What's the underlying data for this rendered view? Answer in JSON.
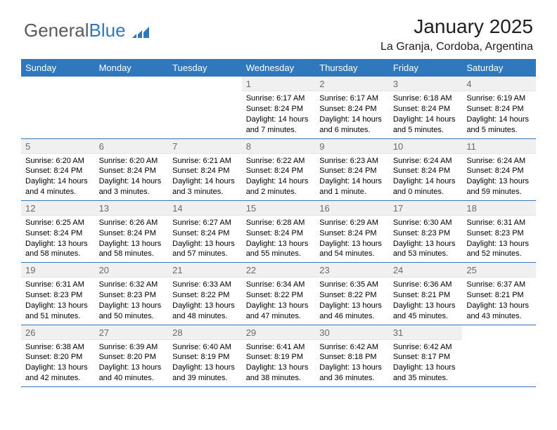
{
  "brand": {
    "part1": "General",
    "part2": "Blue"
  },
  "title": "January 2025",
  "subtitle": "La Granja, Cordoba, Argentina",
  "colors": {
    "header_bg": "#2f78bd",
    "header_fg": "#ffffff",
    "daynum_bg": "#f0f0f0",
    "daynum_fg": "#6a6a6a",
    "row_border": "#2f78bd"
  },
  "weekdays": [
    "Sunday",
    "Monday",
    "Tuesday",
    "Wednesday",
    "Thursday",
    "Friday",
    "Saturday"
  ],
  "weeks": [
    [
      null,
      null,
      null,
      {
        "n": "1",
        "sunrise": "6:17 AM",
        "sunset": "8:24 PM",
        "daylight": "14 hours and 7 minutes."
      },
      {
        "n": "2",
        "sunrise": "6:17 AM",
        "sunset": "8:24 PM",
        "daylight": "14 hours and 6 minutes."
      },
      {
        "n": "3",
        "sunrise": "6:18 AM",
        "sunset": "8:24 PM",
        "daylight": "14 hours and 5 minutes."
      },
      {
        "n": "4",
        "sunrise": "6:19 AM",
        "sunset": "8:24 PM",
        "daylight": "14 hours and 5 minutes."
      }
    ],
    [
      {
        "n": "5",
        "sunrise": "6:20 AM",
        "sunset": "8:24 PM",
        "daylight": "14 hours and 4 minutes."
      },
      {
        "n": "6",
        "sunrise": "6:20 AM",
        "sunset": "8:24 PM",
        "daylight": "14 hours and 3 minutes."
      },
      {
        "n": "7",
        "sunrise": "6:21 AM",
        "sunset": "8:24 PM",
        "daylight": "14 hours and 3 minutes."
      },
      {
        "n": "8",
        "sunrise": "6:22 AM",
        "sunset": "8:24 PM",
        "daylight": "14 hours and 2 minutes."
      },
      {
        "n": "9",
        "sunrise": "6:23 AM",
        "sunset": "8:24 PM",
        "daylight": "14 hours and 1 minute."
      },
      {
        "n": "10",
        "sunrise": "6:24 AM",
        "sunset": "8:24 PM",
        "daylight": "14 hours and 0 minutes."
      },
      {
        "n": "11",
        "sunrise": "6:24 AM",
        "sunset": "8:24 PM",
        "daylight": "13 hours and 59 minutes."
      }
    ],
    [
      {
        "n": "12",
        "sunrise": "6:25 AM",
        "sunset": "8:24 PM",
        "daylight": "13 hours and 58 minutes."
      },
      {
        "n": "13",
        "sunrise": "6:26 AM",
        "sunset": "8:24 PM",
        "daylight": "13 hours and 58 minutes."
      },
      {
        "n": "14",
        "sunrise": "6:27 AM",
        "sunset": "8:24 PM",
        "daylight": "13 hours and 57 minutes."
      },
      {
        "n": "15",
        "sunrise": "6:28 AM",
        "sunset": "8:24 PM",
        "daylight": "13 hours and 55 minutes."
      },
      {
        "n": "16",
        "sunrise": "6:29 AM",
        "sunset": "8:24 PM",
        "daylight": "13 hours and 54 minutes."
      },
      {
        "n": "17",
        "sunrise": "6:30 AM",
        "sunset": "8:23 PM",
        "daylight": "13 hours and 53 minutes."
      },
      {
        "n": "18",
        "sunrise": "6:31 AM",
        "sunset": "8:23 PM",
        "daylight": "13 hours and 52 minutes."
      }
    ],
    [
      {
        "n": "19",
        "sunrise": "6:31 AM",
        "sunset": "8:23 PM",
        "daylight": "13 hours and 51 minutes."
      },
      {
        "n": "20",
        "sunrise": "6:32 AM",
        "sunset": "8:23 PM",
        "daylight": "13 hours and 50 minutes."
      },
      {
        "n": "21",
        "sunrise": "6:33 AM",
        "sunset": "8:22 PM",
        "daylight": "13 hours and 48 minutes."
      },
      {
        "n": "22",
        "sunrise": "6:34 AM",
        "sunset": "8:22 PM",
        "daylight": "13 hours and 47 minutes."
      },
      {
        "n": "23",
        "sunrise": "6:35 AM",
        "sunset": "8:22 PM",
        "daylight": "13 hours and 46 minutes."
      },
      {
        "n": "24",
        "sunrise": "6:36 AM",
        "sunset": "8:21 PM",
        "daylight": "13 hours and 45 minutes."
      },
      {
        "n": "25",
        "sunrise": "6:37 AM",
        "sunset": "8:21 PM",
        "daylight": "13 hours and 43 minutes."
      }
    ],
    [
      {
        "n": "26",
        "sunrise": "6:38 AM",
        "sunset": "8:20 PM",
        "daylight": "13 hours and 42 minutes."
      },
      {
        "n": "27",
        "sunrise": "6:39 AM",
        "sunset": "8:20 PM",
        "daylight": "13 hours and 40 minutes."
      },
      {
        "n": "28",
        "sunrise": "6:40 AM",
        "sunset": "8:19 PM",
        "daylight": "13 hours and 39 minutes."
      },
      {
        "n": "29",
        "sunrise": "6:41 AM",
        "sunset": "8:19 PM",
        "daylight": "13 hours and 38 minutes."
      },
      {
        "n": "30",
        "sunrise": "6:42 AM",
        "sunset": "8:18 PM",
        "daylight": "13 hours and 36 minutes."
      },
      {
        "n": "31",
        "sunrise": "6:42 AM",
        "sunset": "8:17 PM",
        "daylight": "13 hours and 35 minutes."
      },
      null
    ]
  ],
  "labels": {
    "sunrise": "Sunrise:",
    "sunset": "Sunset:",
    "daylight": "Daylight:"
  }
}
